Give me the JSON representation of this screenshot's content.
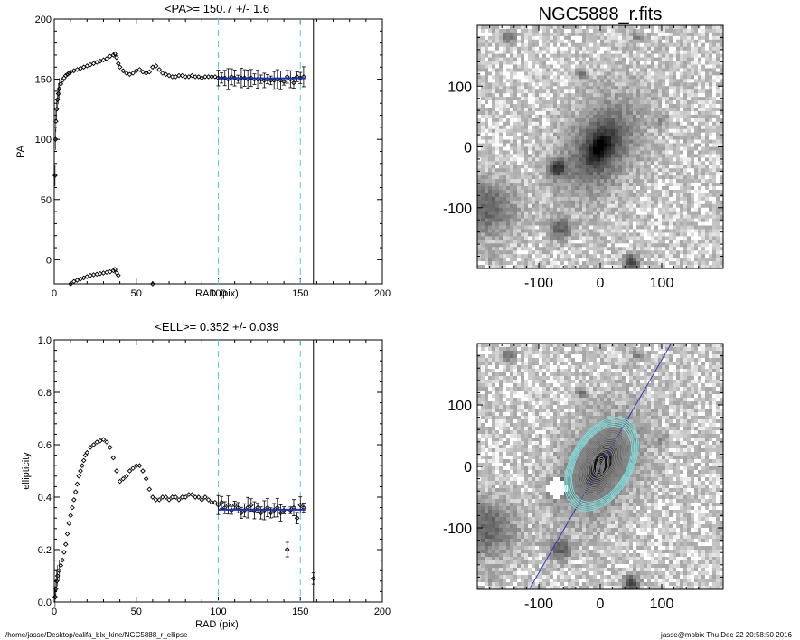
{
  "chart_data": [
    {
      "type": "scatter",
      "title": "<PA>= 150.7 +/-   1.6",
      "xlabel": "RAD (pix)",
      "ylabel": "PA",
      "xlim": [
        0,
        200
      ],
      "ylim": [
        -20,
        200
      ],
      "xticks": [
        "0",
        "50",
        "100",
        "150",
        "200"
      ],
      "yticks": [
        "0",
        "50",
        "100",
        "150",
        "200"
      ],
      "vlines_dashed": [
        100,
        150
      ],
      "vline_solid": 158,
      "fit_line": {
        "x": [
          100,
          153
        ],
        "y": 150.7
      },
      "series": [
        {
          "points": [
            [
              0.5,
              70
            ],
            [
              0.8,
              100
            ],
            [
              1,
              115
            ],
            [
              1.5,
              125
            ],
            [
              2,
              133
            ],
            [
              2.5,
              138
            ],
            [
              3,
              142
            ],
            [
              4,
              146
            ],
            [
              5,
              149
            ],
            [
              6,
              151
            ],
            [
              7,
              153
            ],
            [
              8,
              154
            ],
            [
              9,
              155
            ],
            [
              10,
              156
            ],
            [
              12,
              157
            ],
            [
              14,
              158
            ],
            [
              16,
              159
            ],
            [
              18,
              160
            ],
            [
              20,
              161
            ],
            [
              22,
              162
            ],
            [
              24,
              163
            ],
            [
              26,
              164
            ],
            [
              28,
              165
            ],
            [
              30,
              166
            ],
            [
              32,
              167
            ],
            [
              34,
              169
            ],
            [
              36,
              170
            ],
            [
              37,
              171
            ],
            [
              38,
              168
            ],
            [
              39,
              163
            ],
            [
              40,
              160
            ],
            [
              42,
              157
            ],
            [
              44,
              155
            ],
            [
              46,
              154
            ],
            [
              48,
              155
            ],
            [
              50,
              157
            ],
            [
              52,
              158
            ],
            [
              54,
              156
            ],
            [
              56,
              155
            ],
            [
              58,
              156
            ],
            [
              60,
              160
            ],
            [
              62,
              161
            ],
            [
              64,
              158
            ],
            [
              66,
              155
            ],
            [
              68,
              154
            ],
            [
              70,
              153
            ],
            [
              72,
              152
            ],
            [
              74,
              152
            ],
            [
              76,
              153
            ],
            [
              78,
              153
            ],
            [
              80,
              152
            ],
            [
              82,
              152
            ],
            [
              84,
              153
            ],
            [
              86,
              152
            ],
            [
              88,
              152
            ],
            [
              90,
              151
            ],
            [
              92,
              152
            ],
            [
              94,
              152
            ],
            [
              96,
              152
            ],
            [
              98,
              152
            ],
            [
              100,
              151
            ],
            [
              102,
              151
            ],
            [
              104,
              151
            ],
            [
              106,
              150
            ],
            [
              108,
              152
            ],
            [
              110,
              151
            ],
            [
              112,
              150
            ],
            [
              114,
              151
            ],
            [
              116,
              151
            ],
            [
              118,
              150
            ],
            [
              120,
              151
            ],
            [
              122,
              150
            ],
            [
              124,
              150
            ],
            [
              126,
              150
            ],
            [
              128,
              149
            ],
            [
              130,
              150
            ],
            [
              132,
              149
            ],
            [
              134,
              149
            ],
            [
              136,
              150
            ],
            [
              138,
              149
            ],
            [
              140,
              148
            ],
            [
              142,
              152
            ],
            [
              144,
              150
            ],
            [
              146,
              147
            ],
            [
              148,
              152
            ],
            [
              150,
              151
            ],
            [
              152,
              152
            ]
          ]
        },
        {
          "points": [
            [
              10,
              -20
            ],
            [
              12,
              -18
            ],
            [
              14,
              -17
            ],
            [
              16,
              -16
            ],
            [
              18,
              -15
            ],
            [
              20,
              -14
            ],
            [
              22,
              -13
            ],
            [
              24,
              -12.5
            ],
            [
              26,
              -12
            ],
            [
              28,
              -11.5
            ],
            [
              30,
              -11
            ],
            [
              32,
              -10.5
            ],
            [
              34,
              -10
            ],
            [
              36,
              -9
            ],
            [
              37,
              -8
            ],
            [
              38,
              -11
            ],
            [
              39,
              -13
            ],
            [
              60,
              -20
            ]
          ]
        }
      ]
    },
    {
      "type": "scatter",
      "title": "<ELL>= 0.352 +/-  0.039",
      "xlabel": "RAD (pix)",
      "ylabel": "ellipticity",
      "xlim": [
        0,
        200
      ],
      "ylim": [
        0,
        1
      ],
      "xticks": [
        "0",
        "50",
        "100",
        "150",
        "200"
      ],
      "yticks": [
        "0.0",
        "0.2",
        "0.4",
        "0.6",
        "0.8",
        "1.0"
      ],
      "vlines_dashed": [
        100,
        150
      ],
      "vline_solid": 158,
      "fit_line": {
        "x": [
          100,
          153
        ],
        "y": 0.352
      },
      "series": [
        {
          "points": [
            [
              0.5,
              0.02
            ],
            [
              1,
              0.05
            ],
            [
              1.5,
              0.08
            ],
            [
              2,
              0.1
            ],
            [
              3,
              0.12
            ],
            [
              4,
              0.14
            ],
            [
              5,
              0.16
            ],
            [
              6,
              0.19
            ],
            [
              7,
              0.22
            ],
            [
              8,
              0.26
            ],
            [
              9,
              0.3
            ],
            [
              10,
              0.33
            ],
            [
              11,
              0.36
            ],
            [
              12,
              0.39
            ],
            [
              13,
              0.42
            ],
            [
              14,
              0.45
            ],
            [
              15,
              0.48
            ],
            [
              16,
              0.5
            ],
            [
              17,
              0.52
            ],
            [
              18,
              0.54
            ],
            [
              19,
              0.56
            ],
            [
              20,
              0.57
            ],
            [
              22,
              0.59
            ],
            [
              24,
              0.6
            ],
            [
              26,
              0.61
            ],
            [
              28,
              0.615
            ],
            [
              30,
              0.62
            ],
            [
              32,
              0.61
            ],
            [
              34,
              0.59
            ],
            [
              36,
              0.55
            ],
            [
              38,
              0.5
            ],
            [
              40,
              0.46
            ],
            [
              42,
              0.47
            ],
            [
              44,
              0.48
            ],
            [
              46,
              0.5
            ],
            [
              48,
              0.51
            ],
            [
              50,
              0.52
            ],
            [
              52,
              0.52
            ],
            [
              54,
              0.5
            ],
            [
              56,
              0.47
            ],
            [
              58,
              0.43
            ],
            [
              60,
              0.4
            ],
            [
              62,
              0.39
            ],
            [
              64,
              0.39
            ],
            [
              66,
              0.4
            ],
            [
              68,
              0.4
            ],
            [
              70,
              0.39
            ],
            [
              72,
              0.4
            ],
            [
              74,
              0.4
            ],
            [
              76,
              0.39
            ],
            [
              78,
              0.4
            ],
            [
              80,
              0.4
            ],
            [
              82,
              0.41
            ],
            [
              84,
              0.41
            ],
            [
              86,
              0.4
            ],
            [
              88,
              0.4
            ],
            [
              90,
              0.39
            ],
            [
              92,
              0.4
            ],
            [
              94,
              0.39
            ],
            [
              96,
              0.38
            ],
            [
              98,
              0.38
            ],
            [
              100,
              0.37
            ],
            [
              102,
              0.38
            ],
            [
              104,
              0.36
            ],
            [
              106,
              0.37
            ],
            [
              108,
              0.35
            ],
            [
              110,
              0.37
            ],
            [
              112,
              0.36
            ],
            [
              114,
              0.34
            ],
            [
              116,
              0.35
            ],
            [
              118,
              0.36
            ],
            [
              120,
              0.37
            ],
            [
              122,
              0.35
            ],
            [
              124,
              0.36
            ],
            [
              126,
              0.34
            ],
            [
              128,
              0.35
            ],
            [
              130,
              0.36
            ],
            [
              132,
              0.34
            ],
            [
              134,
              0.35
            ],
            [
              136,
              0.36
            ],
            [
              138,
              0.34
            ],
            [
              140,
              0.35
            ],
            [
              142,
              0.2
            ],
            [
              144,
              0.35
            ],
            [
              146,
              0.36
            ],
            [
              148,
              0.32
            ],
            [
              150,
              0.37
            ],
            [
              152,
              0.36
            ],
            [
              158,
              0.09
            ]
          ]
        }
      ]
    },
    {
      "type": "heatmap",
      "title": "NGC5888_r.fits",
      "xlim": [
        -200,
        200
      ],
      "ylim": [
        -200,
        200
      ],
      "xticks": [
        "-100",
        "0",
        "100"
      ],
      "yticks": [
        "-100",
        "0",
        "100"
      ],
      "colormap": "gray reversed"
    },
    {
      "type": "heatmap",
      "title": "",
      "xlim": [
        -200,
        200
      ],
      "ylim": [
        -200,
        200
      ],
      "xticks": [
        "-100",
        "0",
        "100"
      ],
      "yticks": [
        "-100",
        "0",
        "100"
      ],
      "overlay": "ellipse isophote contours and major-axis line",
      "contour_colors": [
        "#80e0e0",
        "#888888"
      ],
      "axis_line_color": "#3030c0"
    }
  ],
  "footer": {
    "left": "/home/jasse/Desktop/califa_blx_kine/NGC5888_r_ellipse",
    "right": "jasse@mobix  Thu Dec 22 20:58:50 2016"
  },
  "colors": {
    "fit": "#2030b0",
    "dashed": "#60c8d8",
    "points": "#000000"
  }
}
